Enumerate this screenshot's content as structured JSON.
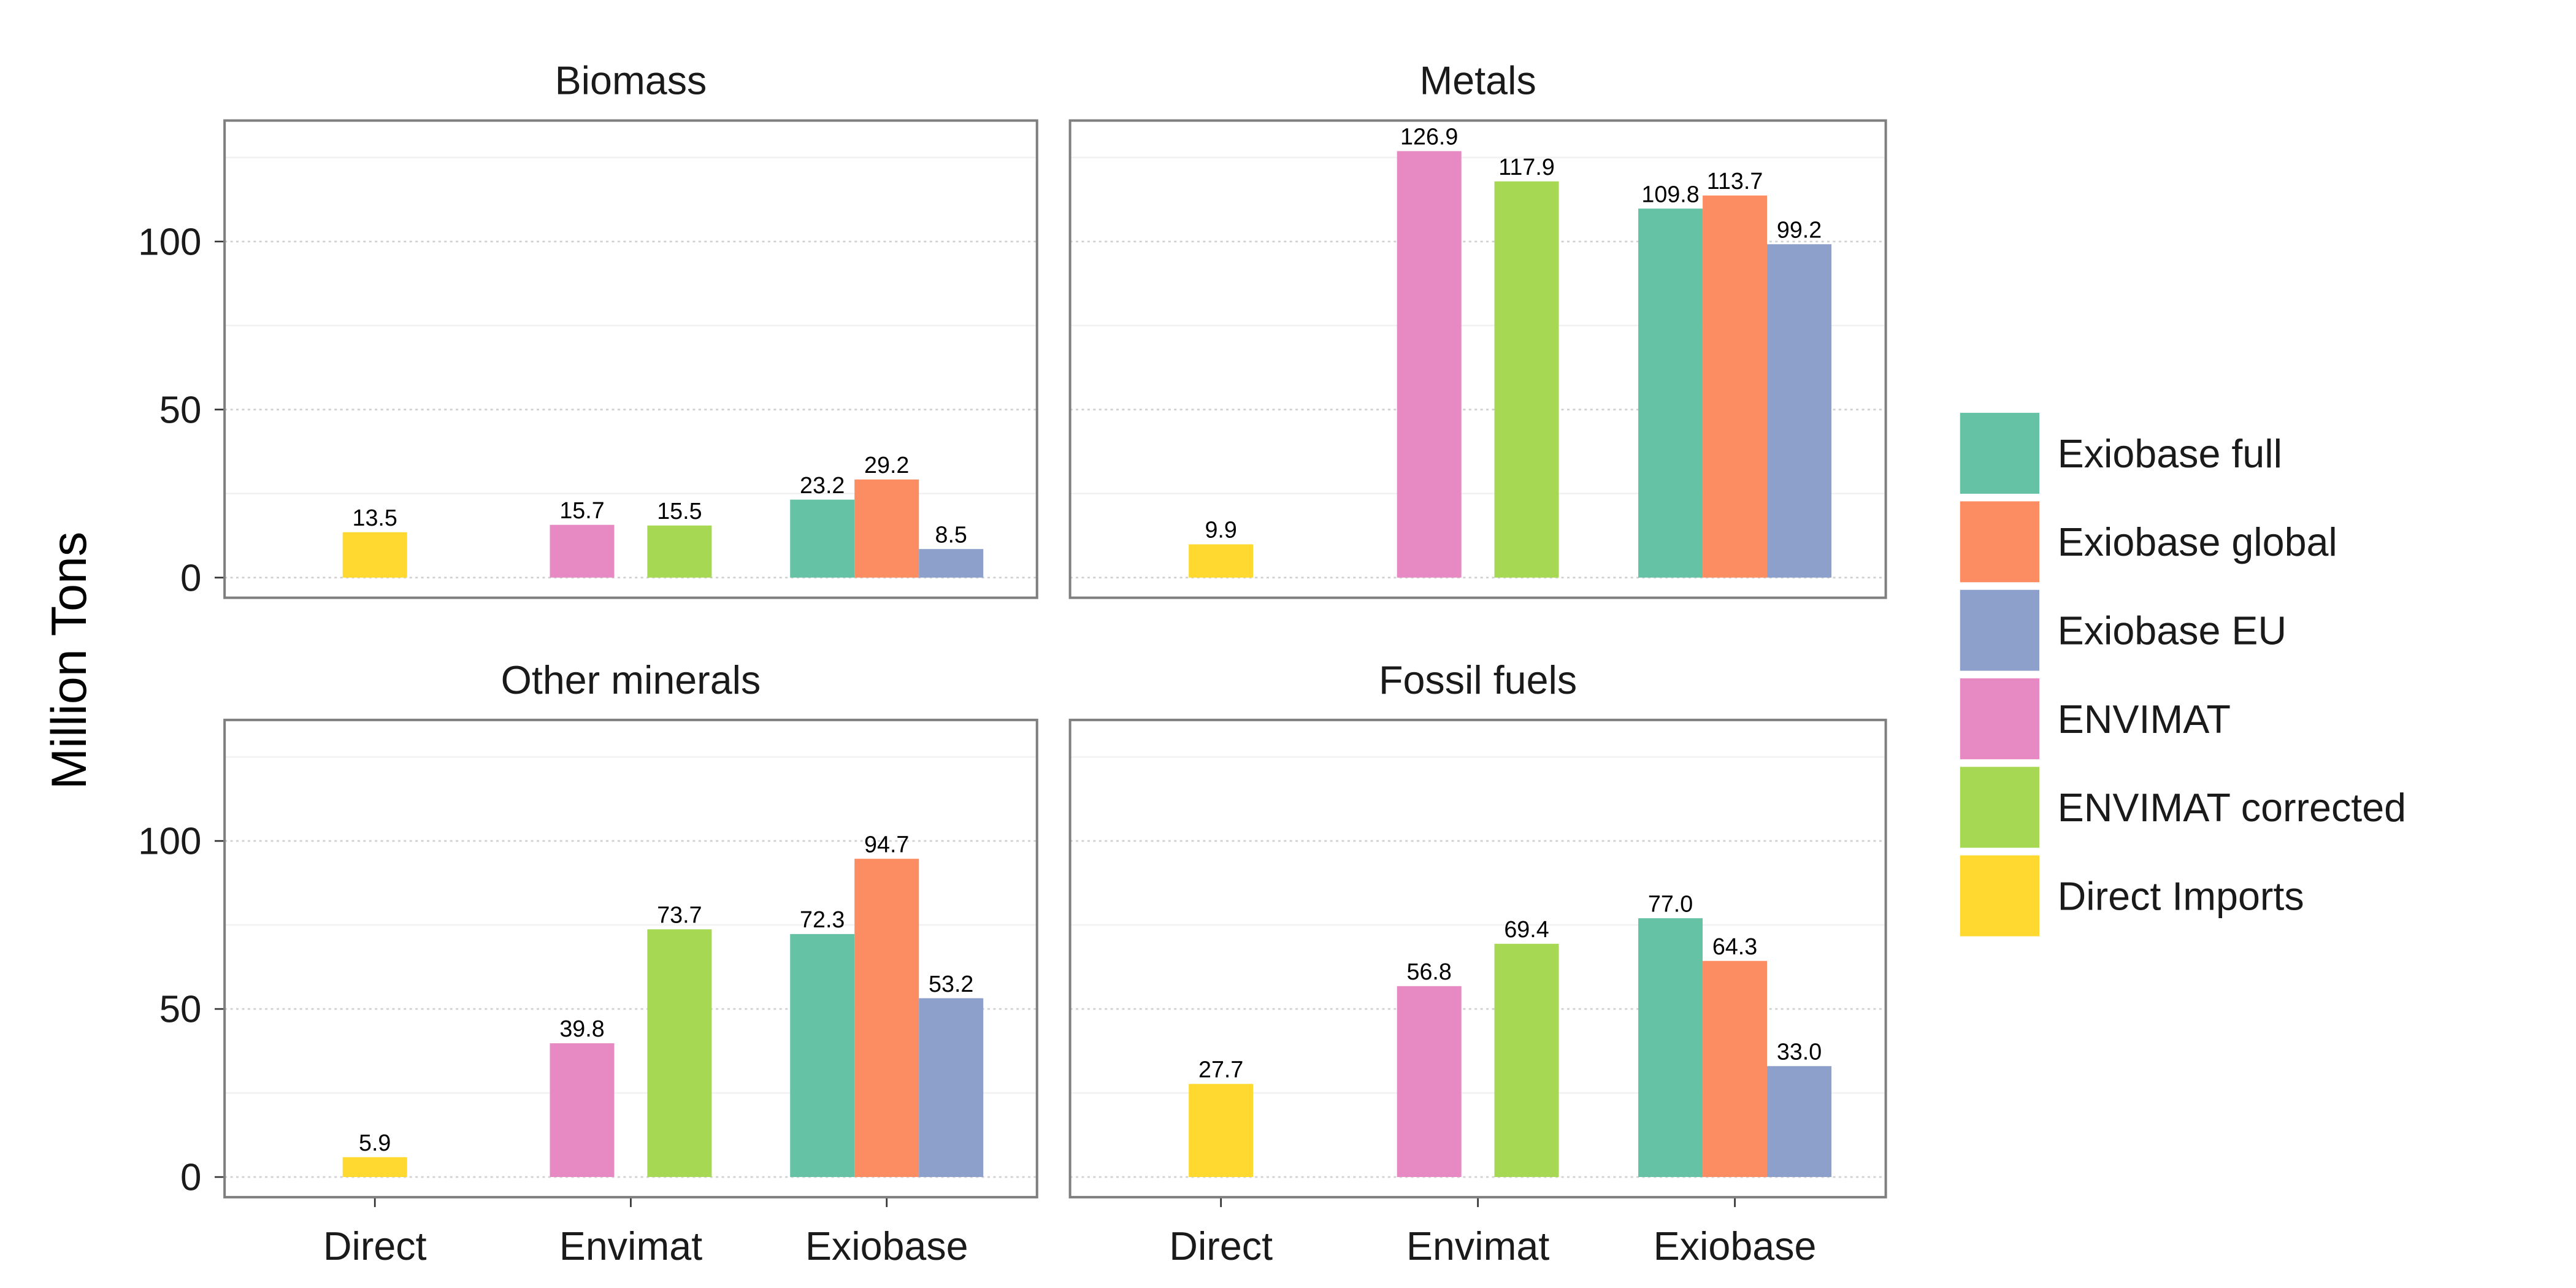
{
  "chart_data": {
    "type": "bar",
    "ylabel": "Million Tons",
    "xlabel": "",
    "ylim": [
      -6,
      136
    ],
    "yticks": [
      0,
      50,
      100
    ],
    "grid": true,
    "legend_position": "right",
    "categories": [
      "Direct",
      "Envimat",
      "Exiobase"
    ],
    "series": [
      {
        "name": "Exiobase full",
        "color": "#66c2a5",
        "category": "Exiobase"
      },
      {
        "name": "Exiobase global",
        "color": "#fc8d62",
        "category": "Exiobase"
      },
      {
        "name": "Exiobase EU",
        "color": "#8da0cb",
        "category": "Exiobase"
      },
      {
        "name": "ENVIMAT",
        "color": "#e78ac3",
        "category": "Envimat"
      },
      {
        "name": "ENVIMAT corrected",
        "color": "#a6d854",
        "category": "Envimat"
      },
      {
        "name": "Direct Imports",
        "color": "#ffd92f",
        "category": "Direct"
      }
    ],
    "panels": [
      {
        "title": "Biomass",
        "values": {
          "Direct Imports": 13.5,
          "ENVIMAT": 15.7,
          "ENVIMAT corrected": 15.5,
          "Exiobase full": 23.2,
          "Exiobase global": 29.2,
          "Exiobase EU": 8.5
        },
        "labels": {
          "Direct Imports": "13.5",
          "ENVIMAT": "15.7",
          "ENVIMAT corrected": "15.5",
          "Exiobase full": "23.2",
          "Exiobase global": "29.2",
          "Exiobase EU": "8.5"
        }
      },
      {
        "title": "Metals",
        "values": {
          "Direct Imports": 9.9,
          "ENVIMAT": 126.9,
          "ENVIMAT corrected": 117.9,
          "Exiobase full": 109.8,
          "Exiobase global": 113.7,
          "Exiobase EU": 99.2
        },
        "labels": {
          "Direct Imports": "9.9",
          "ENVIMAT": "126.9",
          "ENVIMAT corrected": "117.9",
          "Exiobase full": "109.8",
          "Exiobase global": "113.7",
          "Exiobase EU": "99.2"
        }
      },
      {
        "title": "Other minerals",
        "values": {
          "Direct Imports": 5.9,
          "ENVIMAT": 39.8,
          "ENVIMAT corrected": 73.7,
          "Exiobase full": 72.3,
          "Exiobase global": 94.7,
          "Exiobase EU": 53.2
        },
        "labels": {
          "Direct Imports": "5.9",
          "ENVIMAT": "39.8",
          "ENVIMAT corrected": "73.7",
          "Exiobase full": "72.3",
          "Exiobase global": "94.7",
          "Exiobase EU": "53.2"
        }
      },
      {
        "title": "Fossil fuels",
        "values": {
          "Direct Imports": 27.7,
          "ENVIMAT": 56.8,
          "ENVIMAT corrected": 69.4,
          "Exiobase full": 77.0,
          "Exiobase global": 64.3,
          "Exiobase EU": 33.0
        },
        "labels": {
          "Direct Imports": "27.7",
          "ENVIMAT": "56.8",
          "ENVIMAT corrected": "69.4",
          "Exiobase full": "77.0",
          "Exiobase global": "64.3",
          "Exiobase EU": "33.0"
        }
      }
    ]
  }
}
